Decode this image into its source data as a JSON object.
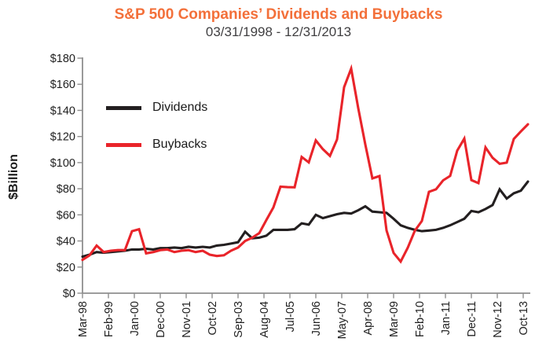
{
  "header": {
    "title": "S&P 500 Companies’ Dividends and Buybacks",
    "subtitle": "03/31/1998 - 12/31/2013"
  },
  "colors": {
    "title_accent": "#F3703A",
    "dividends_line": "#231F20",
    "buybacks_line": "#E9242A",
    "axis": "#8F8F8F",
    "tick_text": "#212121"
  },
  "legend": {
    "items": [
      {
        "label": "Dividends",
        "color": "#231F20"
      },
      {
        "label": "Buybacks",
        "color": "#E9242A"
      }
    ]
  },
  "y_axis": {
    "label": "$Billion",
    "min": 0,
    "max": 180,
    "step": 20,
    "tick_labels": [
      "$0",
      "$20",
      "$40",
      "$60",
      "$80",
      "$100",
      "$120",
      "$140",
      "$160",
      "$180"
    ]
  },
  "x_axis": {
    "tick_labels": [
      "Mar-98",
      "Feb-99",
      "Jan-00",
      "Dec-00",
      "Nov-01",
      "Oct-02",
      "Sep-03",
      "Aug-04",
      "Jul-05",
      "Jun-06",
      "May-07",
      "Apr-08",
      "Mar-09",
      "Feb-10",
      "Jan-11",
      "Dec-11",
      "Nov-12",
      "Oct-13"
    ]
  },
  "chart_data": {
    "type": "line",
    "title": "S&P 500 Companies’ Dividends and Buybacks",
    "subtitle": "03/31/1998 - 12/31/2013",
    "xlabel": "",
    "ylabel": "$Billion",
    "ylim": [
      0,
      180
    ],
    "grid": false,
    "legend_position": "upper-left",
    "x_unit": "quarter",
    "x": [
      "Mar-98",
      "Jun-98",
      "Sep-98",
      "Dec-98",
      "Mar-99",
      "Jun-99",
      "Sep-99",
      "Dec-99",
      "Mar-00",
      "Jun-00",
      "Sep-00",
      "Dec-00",
      "Mar-01",
      "Jun-01",
      "Sep-01",
      "Dec-01",
      "Mar-02",
      "Jun-02",
      "Sep-02",
      "Dec-02",
      "Mar-03",
      "Jun-03",
      "Sep-03",
      "Dec-03",
      "Mar-04",
      "Jun-04",
      "Sep-04",
      "Dec-04",
      "Mar-05",
      "Jun-05",
      "Sep-05",
      "Dec-05",
      "Mar-06",
      "Jun-06",
      "Sep-06",
      "Dec-06",
      "Mar-07",
      "Jun-07",
      "Sep-07",
      "Dec-07",
      "Mar-08",
      "Jun-08",
      "Sep-08",
      "Dec-08",
      "Mar-09",
      "Jun-09",
      "Sep-09",
      "Dec-09",
      "Mar-10",
      "Jun-10",
      "Sep-10",
      "Dec-10",
      "Mar-11",
      "Jun-11",
      "Sep-11",
      "Dec-11",
      "Mar-12",
      "Jun-12",
      "Sep-12",
      "Dec-12",
      "Mar-13",
      "Jun-13",
      "Sep-13",
      "Dec-13"
    ],
    "series": [
      {
        "name": "Dividends",
        "color": "#231F20",
        "values": [
          28,
          29.5,
          31.5,
          31,
          31.5,
          32,
          32.5,
          33.5,
          33.5,
          34,
          33.5,
          34.5,
          34.5,
          35,
          34.5,
          35.5,
          35,
          35.5,
          35,
          36.5,
          37,
          38,
          39,
          47,
          42,
          42.5,
          44,
          48.5,
          48.5,
          48.5,
          49,
          53.5,
          52.5,
          60,
          57.5,
          59,
          60.5,
          61.5,
          61,
          63.5,
          66.5,
          62.5,
          62,
          61.5,
          57,
          52,
          50,
          48.5,
          47.5,
          48,
          48.5,
          50,
          52,
          54.5,
          57,
          63,
          62,
          64.5,
          67.5,
          79.5,
          72.5,
          76.5,
          78.5,
          85.5
        ]
      },
      {
        "name": "Buybacks",
        "color": "#E9242A",
        "values": [
          25.5,
          29,
          36.5,
          31.5,
          32.5,
          33,
          33,
          47.5,
          49,
          30.5,
          31.5,
          33,
          33.5,
          31.5,
          32.5,
          33,
          31.5,
          32.5,
          29.5,
          28.5,
          29,
          32.5,
          35,
          40,
          42.5,
          46,
          56,
          65.7,
          81.6,
          81.2,
          81.1,
          104.3,
          100.2,
          117,
          110.3,
          105.2,
          117.7,
          157.8,
          172,
          141.7,
          113.9,
          87.9,
          89.7,
          48.1,
          30.8,
          24.2,
          34.8,
          47.8,
          55.3,
          77.6,
          79.6,
          86.4,
          89.8,
          109.2,
          118.4,
          86.6,
          84.3,
          111.7,
          103.7,
          99.1,
          100,
          118.1,
          123.9,
          129.4
        ]
      }
    ]
  }
}
